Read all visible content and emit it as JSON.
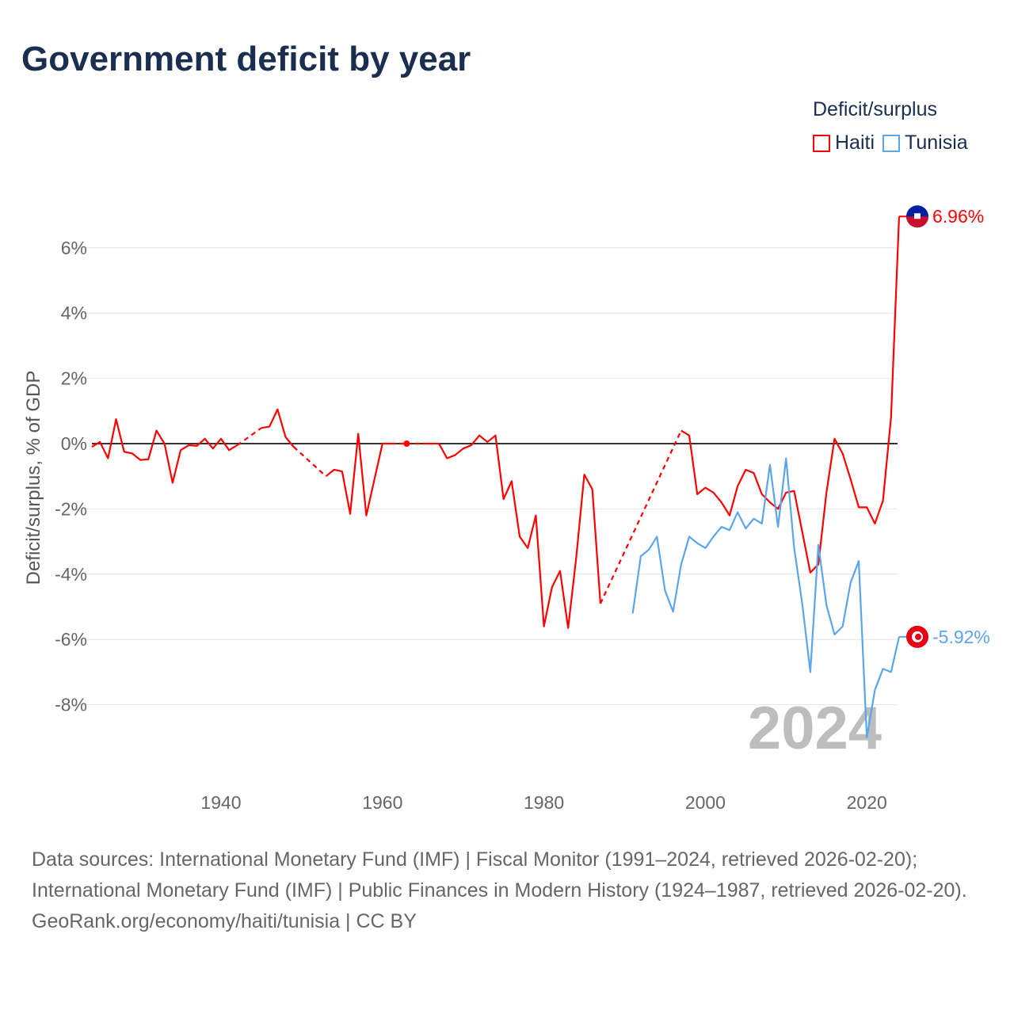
{
  "title": "Government deficit by year",
  "legend": {
    "title": "Deficit/surplus",
    "items": [
      {
        "name": "Haiti",
        "color": "#ff0000"
      },
      {
        "name": "Tunisia",
        "color": "#5aa5ec"
      }
    ]
  },
  "footer": {
    "sources": "Data sources: International Monetary Fund (IMF) | Fiscal Monitor (1991–2024, retrieved 2026-02-20); International Monetary Fund (IMF) | Public Finances in Modern History (1924–1987, retrieved 2026-02-20).",
    "credit": "GeoRank.org/economy/haiti/tunisia | CC BY"
  },
  "chart_data": {
    "type": "line",
    "title": "Government deficit by year",
    "ylabel": "Deficit/surplus, % of GDP",
    "xlabel": "",
    "xlim": [
      1924,
      2024
    ],
    "ylim": [
      -10,
      7.5
    ],
    "xticks": [
      {
        "value": 1940,
        "label": "1940"
      },
      {
        "value": 1960,
        "label": "1960"
      },
      {
        "value": 1980,
        "label": "1980"
      },
      {
        "value": 2000,
        "label": "2000"
      },
      {
        "value": 2020,
        "label": "2020"
      }
    ],
    "yticks": [
      {
        "value": 6,
        "label": "6%"
      },
      {
        "value": 4,
        "label": "4%"
      },
      {
        "value": 2,
        "label": "2%"
      },
      {
        "value": 0,
        "label": "0%"
      },
      {
        "value": -2,
        "label": "-2%"
      },
      {
        "value": -4,
        "label": "-4%"
      },
      {
        "value": -6,
        "label": "-6%"
      },
      {
        "value": -8,
        "label": "-8%"
      }
    ],
    "year_watermark": "2024",
    "series": [
      {
        "name": "Haiti",
        "color": "#ff0000",
        "end_label": "6.96%",
        "points": [
          [
            1924,
            -0.1
          ],
          [
            1925,
            0.05
          ],
          [
            1926,
            -0.45
          ],
          [
            1927,
            0.75
          ],
          [
            1928,
            -0.25
          ],
          [
            1929,
            -0.3
          ],
          [
            1930,
            -0.5
          ],
          [
            1931,
            -0.48
          ],
          [
            1932,
            0.4
          ],
          [
            1933,
            0.0
          ],
          [
            1934,
            -1.2
          ],
          [
            1935,
            -0.2
          ],
          [
            1936,
            -0.05
          ],
          [
            1937,
            -0.07
          ],
          [
            1938,
            0.15
          ],
          [
            1939,
            -0.15
          ],
          [
            1940,
            0.15
          ],
          [
            1941,
            -0.2
          ],
          [
            1942,
            -0.05
          ],
          [
            1945,
            0.48
          ],
          [
            1946,
            0.52
          ],
          [
            1947,
            1.05
          ],
          [
            1948,
            0.2
          ],
          [
            1949,
            -0.1
          ],
          [
            1953,
            -1.0
          ],
          [
            1954,
            -0.8
          ],
          [
            1955,
            -0.85
          ],
          [
            1956,
            -2.15
          ],
          [
            1957,
            0.3
          ],
          [
            1958,
            -2.2
          ],
          [
            1959,
            -1.1
          ],
          [
            1960,
            0.0
          ],
          [
            1961,
            0.0
          ],
          [
            1963,
            0.0
          ],
          [
            1965,
            0.0
          ],
          [
            1966,
            0.0
          ],
          [
            1967,
            0.0
          ],
          [
            1968,
            -0.45
          ],
          [
            1969,
            -0.35
          ],
          [
            1970,
            -0.15
          ],
          [
            1971,
            -0.05
          ],
          [
            1972,
            0.25
          ],
          [
            1973,
            0.05
          ],
          [
            1974,
            0.25
          ],
          [
            1975,
            -1.7
          ],
          [
            1976,
            -1.15
          ],
          [
            1977,
            -2.85
          ],
          [
            1978,
            -3.2
          ],
          [
            1979,
            -2.2
          ],
          [
            1980,
            -5.6
          ],
          [
            1981,
            -4.4
          ],
          [
            1982,
            -3.9
          ],
          [
            1983,
            -5.65
          ],
          [
            1984,
            -3.5
          ],
          [
            1985,
            -0.95
          ],
          [
            1986,
            -1.4
          ],
          [
            1987,
            -4.9
          ],
          [
            1997,
            0.4
          ],
          [
            1998,
            0.25
          ],
          [
            1999,
            -1.55
          ],
          [
            2000,
            -1.35
          ],
          [
            2001,
            -1.5
          ],
          [
            2002,
            -1.8
          ],
          [
            2003,
            -2.2
          ],
          [
            2004,
            -1.3
          ],
          [
            2005,
            -0.8
          ],
          [
            2006,
            -0.9
          ],
          [
            2007,
            -1.55
          ],
          [
            2008,
            -1.8
          ],
          [
            2009,
            -2.0
          ],
          [
            2010,
            -1.5
          ],
          [
            2011,
            -1.45
          ],
          [
            2012,
            -2.7
          ],
          [
            2013,
            -3.95
          ],
          [
            2014,
            -3.7
          ],
          [
            2015,
            -1.5
          ],
          [
            2016,
            0.15
          ],
          [
            2017,
            -0.3
          ],
          [
            2018,
            -1.1
          ],
          [
            2019,
            -1.95
          ],
          [
            2020,
            -1.95
          ],
          [
            2021,
            -2.45
          ],
          [
            2022,
            -1.75
          ],
          [
            2023,
            0.8
          ],
          [
            2024,
            6.96
          ]
        ]
      },
      {
        "name": "Tunisia",
        "color": "#5aa5ec",
        "end_label": "-5.92%",
        "points": [
          [
            1991,
            -5.2
          ],
          [
            1992,
            -3.45
          ],
          [
            1993,
            -3.25
          ],
          [
            1994,
            -2.85
          ],
          [
            1995,
            -4.5
          ],
          [
            1996,
            -5.15
          ],
          [
            1997,
            -3.7
          ],
          [
            1998,
            -2.85
          ],
          [
            1999,
            -3.05
          ],
          [
            2000,
            -3.2
          ],
          [
            2001,
            -2.85
          ],
          [
            2002,
            -2.55
          ],
          [
            2003,
            -2.65
          ],
          [
            2004,
            -2.1
          ],
          [
            2005,
            -2.6
          ],
          [
            2006,
            -2.3
          ],
          [
            2007,
            -2.45
          ],
          [
            2008,
            -0.65
          ],
          [
            2009,
            -2.55
          ],
          [
            2010,
            -0.45
          ],
          [
            2011,
            -3.2
          ],
          [
            2012,
            -4.9
          ],
          [
            2013,
            -7.0
          ],
          [
            2014,
            -3.1
          ],
          [
            2015,
            -4.95
          ],
          [
            2016,
            -5.85
          ],
          [
            2017,
            -5.6
          ],
          [
            2018,
            -4.25
          ],
          [
            2019,
            -3.6
          ],
          [
            2020,
            -9.0
          ],
          [
            2021,
            -7.55
          ],
          [
            2022,
            -6.9
          ],
          [
            2023,
            -7.0
          ],
          [
            2024,
            -5.92
          ]
        ]
      }
    ]
  }
}
